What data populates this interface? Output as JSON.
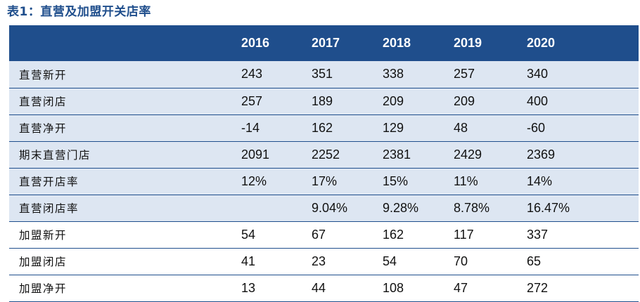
{
  "title": "表1：直营及加盟开关店率",
  "table": {
    "columns": [
      "",
      "2016",
      "2017",
      "2018",
      "2019",
      "2020"
    ],
    "rows": [
      {
        "label": "直营新开",
        "values": [
          "243",
          "351",
          "338",
          "257",
          "340"
        ],
        "shaded": true
      },
      {
        "label": "直营闭店",
        "values": [
          "257",
          "189",
          "209",
          "209",
          "400"
        ],
        "shaded": true
      },
      {
        "label": "直营净开",
        "values": [
          "-14",
          "162",
          "129",
          "48",
          "-60"
        ],
        "shaded": true
      },
      {
        "label": "期末直营门店",
        "values": [
          "2091",
          "2252",
          "2381",
          "2429",
          "2369"
        ],
        "shaded": true
      },
      {
        "label": "直营开店率",
        "values": [
          "12%",
          "17%",
          "15%",
          "11%",
          "14%"
        ],
        "shaded": true
      },
      {
        "label": "直营闭店率",
        "values": [
          "",
          "9.04%",
          "9.28%",
          "8.78%",
          "16.47%"
        ],
        "shaded": true
      },
      {
        "label": "加盟新开",
        "values": [
          "54",
          "67",
          "162",
          "117",
          "337"
        ],
        "shaded": false
      },
      {
        "label": "加盟闭店",
        "values": [
          "41",
          "23",
          "54",
          "70",
          "65"
        ],
        "shaded": false
      },
      {
        "label": "加盟净开",
        "values": [
          "13",
          "44",
          "108",
          "47",
          "272"
        ],
        "shaded": false
      }
    ]
  },
  "colors": {
    "header_bg": "#1f4e8c",
    "header_text": "#ffffff",
    "shaded_row_bg": "#dde6f2",
    "title_text": "#1f4e8c",
    "row_divider": "#1f4e8c"
  }
}
